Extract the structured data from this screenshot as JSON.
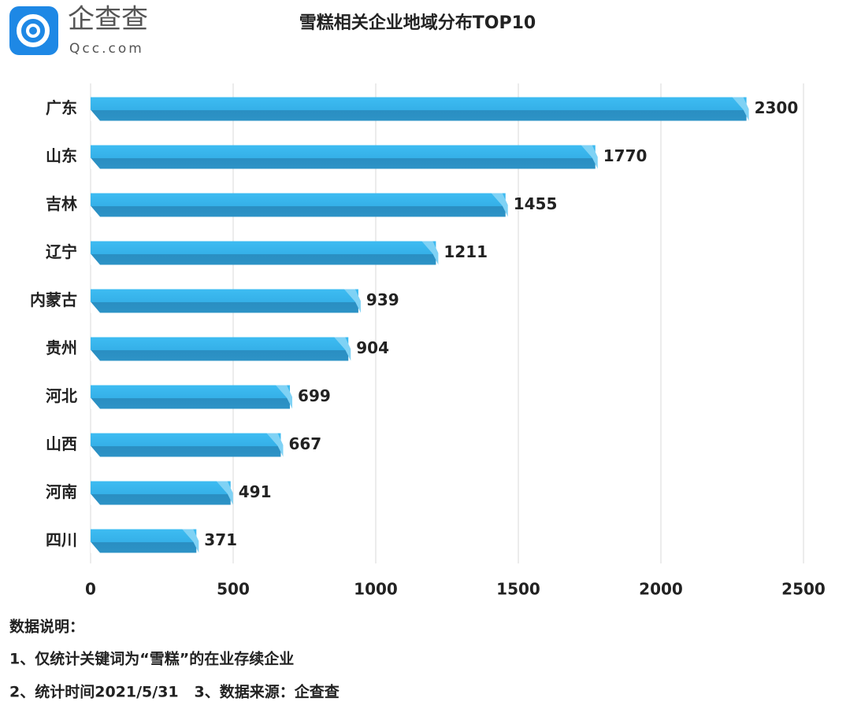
{
  "logo": {
    "name": "企查查",
    "domain": "Qcc.com"
  },
  "chart_data": {
    "type": "barh",
    "title": "雪糕相关企业地域分布TOP10",
    "categories": [
      "广东",
      "山东",
      "吉林",
      "辽宁",
      "内蒙古",
      "贵州",
      "河北",
      "山西",
      "河南",
      "四川"
    ],
    "values": [
      2300,
      1770,
      1455,
      1211,
      939,
      904,
      699,
      667,
      491,
      371
    ],
    "color": "#3bb6ec",
    "xlim": [
      0,
      2500
    ],
    "xticks": [
      0,
      500,
      1000,
      1500,
      2000,
      2500
    ],
    "grid": true
  },
  "notes": {
    "heading": "数据说明：",
    "lines": [
      "1、仅统计关键词为“雪糕”的在业存续企业",
      "2、统计时间2021/5/31   3、数据来源：企查查"
    ]
  }
}
